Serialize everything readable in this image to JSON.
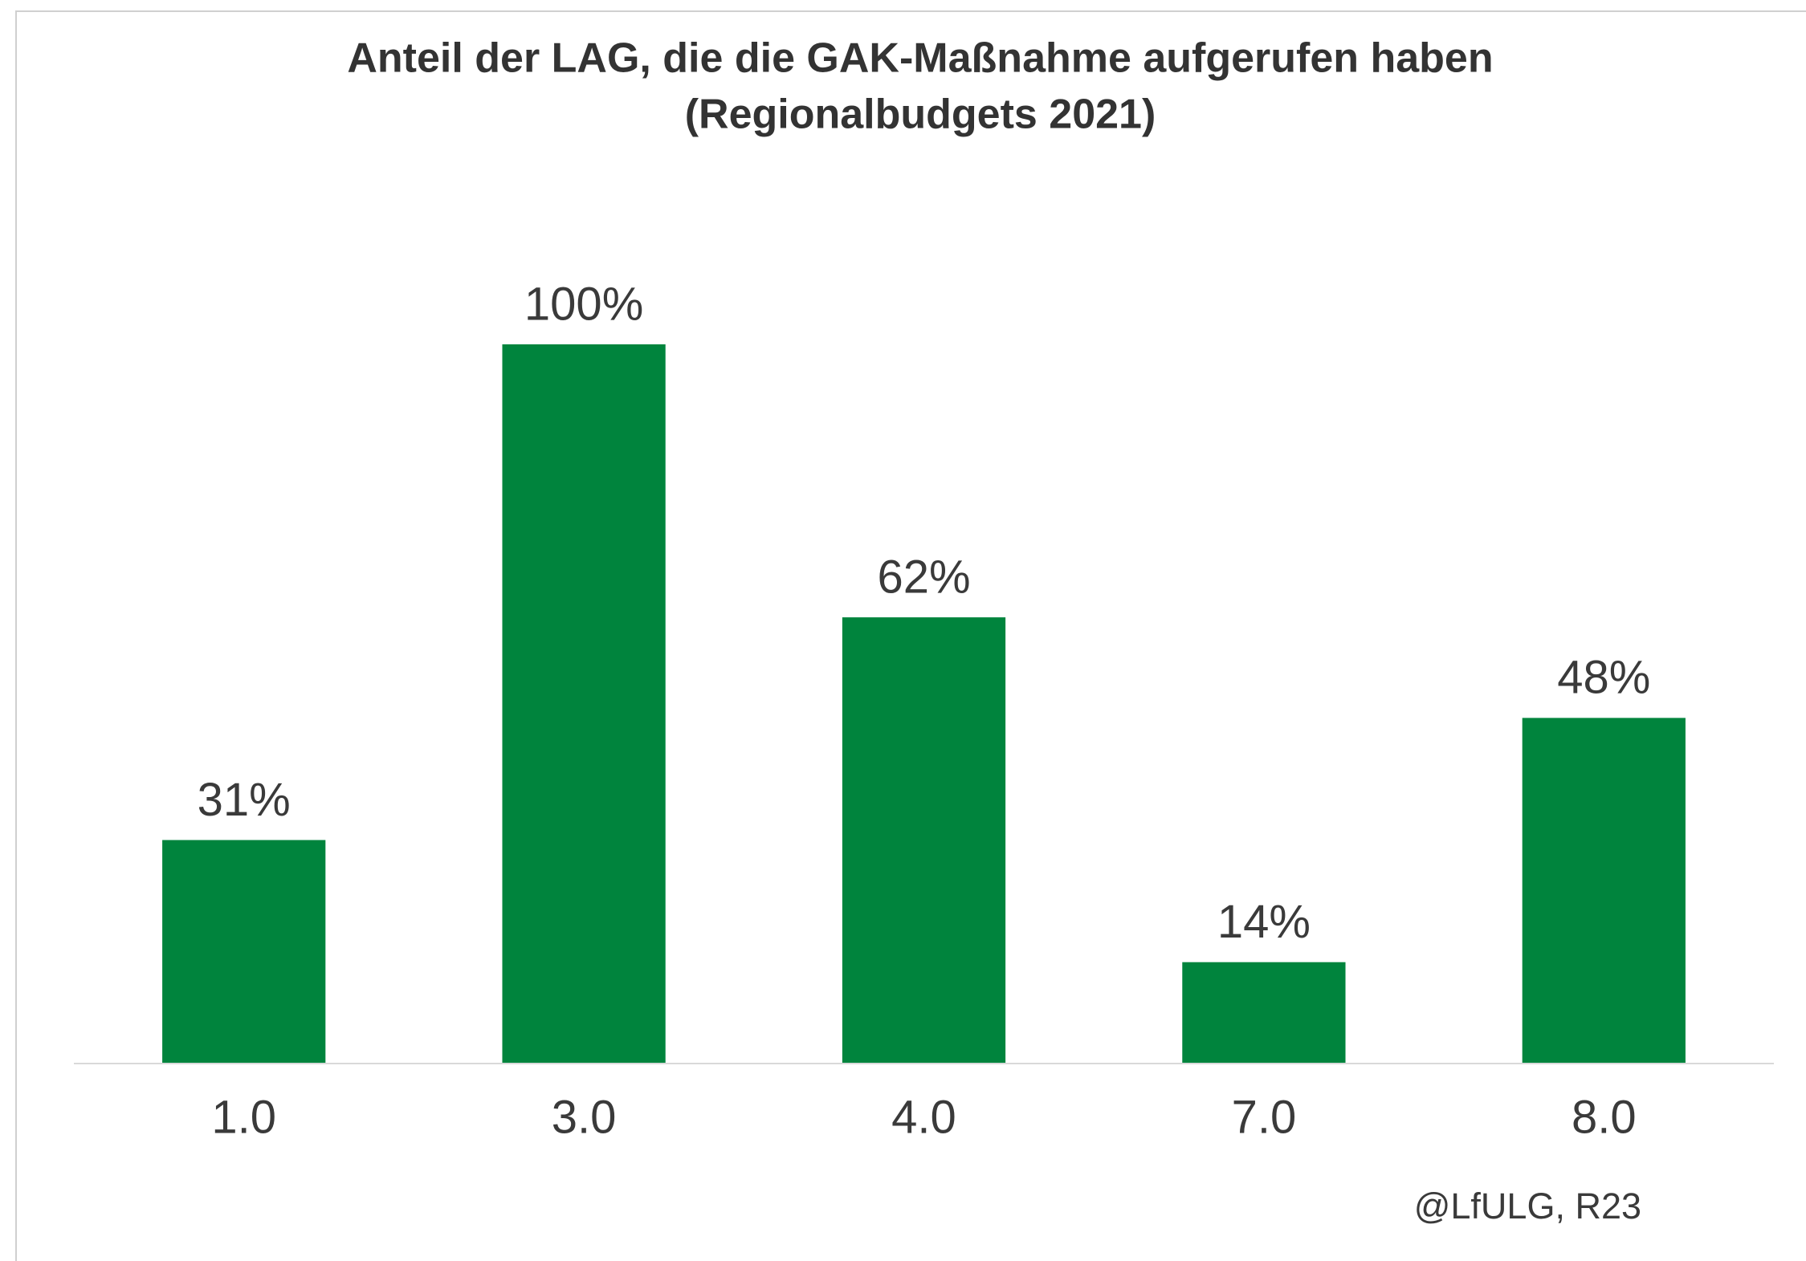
{
  "chart_data": {
    "type": "bar",
    "title": "Anteil der LAG, die die GAK-Maßnahme aufgerufen haben",
    "subtitle": "(Regionalbudgets 2021)",
    "categories": [
      "1.0",
      "3.0",
      "4.0",
      "7.0",
      "8.0"
    ],
    "values": [
      31,
      100,
      62,
      14,
      48
    ],
    "value_labels": [
      "31%",
      "100%",
      "62%",
      "14%",
      "48%"
    ],
    "color": "#00843d",
    "source": "@LfULG, R23"
  }
}
